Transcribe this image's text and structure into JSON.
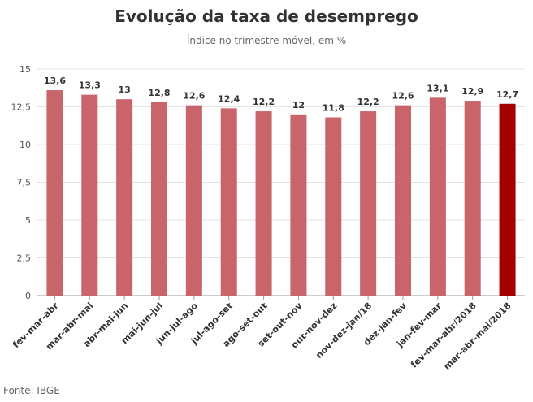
{
  "chart_data": {
    "type": "bar",
    "title": "Evolução da taxa de desemprego",
    "subtitle": "Índice no trimestre móvel, em %",
    "categories": [
      "fev-mar-abr",
      "mar-abr-mai",
      "abr-mai-jun",
      "mai-jun-jul",
      "jun-jul-ago",
      "jul-ago-set",
      "ago-set-out",
      "set-out-nov",
      "out-nov-dez",
      "nov-dez-jan/18",
      "dez-jan-fev",
      "jan-fev-mar",
      "fev-mar-abr/2018",
      "mar-abr-mai/2018"
    ],
    "values": [
      13.6,
      13.3,
      13,
      12.8,
      12.6,
      12.4,
      12.2,
      12,
      11.8,
      12.2,
      12.6,
      13.1,
      12.9,
      12.7
    ],
    "value_labels": [
      "13,6",
      "13,3",
      "13",
      "12,8",
      "12,6",
      "12,4",
      "12,2",
      "12",
      "11,8",
      "12,2",
      "12,6",
      "13,1",
      "12,9",
      "12,7"
    ],
    "ylim": [
      0,
      15
    ],
    "yticks": [
      0,
      2.5,
      5,
      7.5,
      10,
      12.5,
      15
    ],
    "ytick_labels": [
      "0",
      "2,5",
      "5",
      "7,5",
      "10",
      "12,5",
      "15"
    ],
    "grid": true,
    "bar_color": "#c8646a",
    "highlight_color": "#a30000",
    "highlight_index": 13
  },
  "source": "Fonte: IBGE"
}
